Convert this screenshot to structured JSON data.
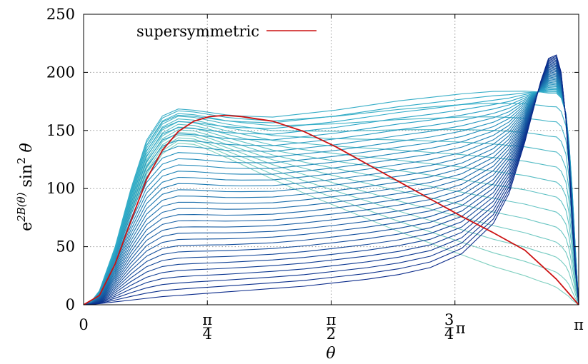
{
  "chart_data": {
    "type": "line",
    "xlabel": "θ",
    "ylabel_parts": {
      "base": "e",
      "exp": "2B(θ)",
      "mid": " sin",
      "exp2": "2",
      "tail": " θ"
    },
    "xlim": [
      0,
      3.14159265
    ],
    "ylim": [
      0,
      250
    ],
    "grid": true,
    "grid_style": "dotted",
    "legend_placement": "top-left",
    "x_ticks": [
      {
        "value": 0,
        "kind": "plain",
        "text": "0"
      },
      {
        "value": 0.785398,
        "kind": "frac",
        "num": "π",
        "den": "4"
      },
      {
        "value": 1.570796,
        "kind": "frac",
        "num": "π",
        "den": "2"
      },
      {
        "value": 2.356194,
        "kind": "fracpi",
        "num": "3",
        "den": "4",
        "tail": "π"
      },
      {
        "value": 3.141593,
        "kind": "plain",
        "text": "π"
      }
    ],
    "y_ticks": [
      0,
      50,
      100,
      150,
      200,
      250
    ],
    "colors": {
      "supersymmetric": "#cc1111",
      "family_light": "#80d0c0",
      "family_mid": "#2aa8c8",
      "family_dark": "#0a2a8a"
    },
    "family_count": 44,
    "series": [
      {
        "name": "supersymmetric",
        "x": [
          0,
          0.1,
          0.2,
          0.3,
          0.4,
          0.5,
          0.6,
          0.7,
          0.8,
          0.9,
          1.0,
          1.2,
          1.4,
          1.6,
          1.8,
          2.0,
          2.2,
          2.4,
          2.6,
          2.8,
          3.0,
          3.1416
        ],
        "values": [
          0,
          8,
          35,
          72,
          108,
          133,
          149,
          158,
          162,
          163,
          162,
          158,
          149,
          136,
          121,
          106,
          91,
          76,
          62,
          47,
          22,
          0
        ]
      }
    ],
    "family": {
      "x": [
        0,
        0.05,
        0.1,
        0.2,
        0.3,
        0.4,
        0.5,
        0.6,
        0.7,
        0.8,
        0.9,
        1.0,
        1.2,
        1.4,
        1.6,
        1.8,
        2.0,
        2.2,
        2.4,
        2.6,
        2.7,
        2.8,
        2.9,
        2.95,
        3.0,
        3.03,
        3.06,
        3.08,
        3.1,
        3.12,
        3.1416
      ],
      "first": [
        0,
        2,
        9,
        40,
        78,
        110,
        130,
        139,
        138,
        133,
        127,
        121,
        108,
        96,
        85,
        74,
        63,
        53,
        43,
        33,
        29,
        25,
        20,
        18,
        15,
        12,
        9,
        7,
        4,
        2,
        0
      ],
      "peaked": [
        0,
        3,
        12,
        50,
        100,
        142,
        163,
        169,
        168,
        166,
        164,
        163,
        162,
        165,
        168,
        172,
        176,
        179,
        182,
        184,
        184,
        184,
        183,
        182,
        182,
        178,
        165,
        140,
        100,
        50,
        0
      ],
      "last": [
        0,
        0.3,
        1,
        2.5,
        4,
        5.5,
        7,
        8,
        9,
        10,
        11,
        12,
        14,
        16,
        19,
        22,
        26,
        32,
        44,
        70,
        96,
        140,
        192,
        212,
        215,
        200,
        160,
        120,
        70,
        30,
        0
      ]
    }
  }
}
